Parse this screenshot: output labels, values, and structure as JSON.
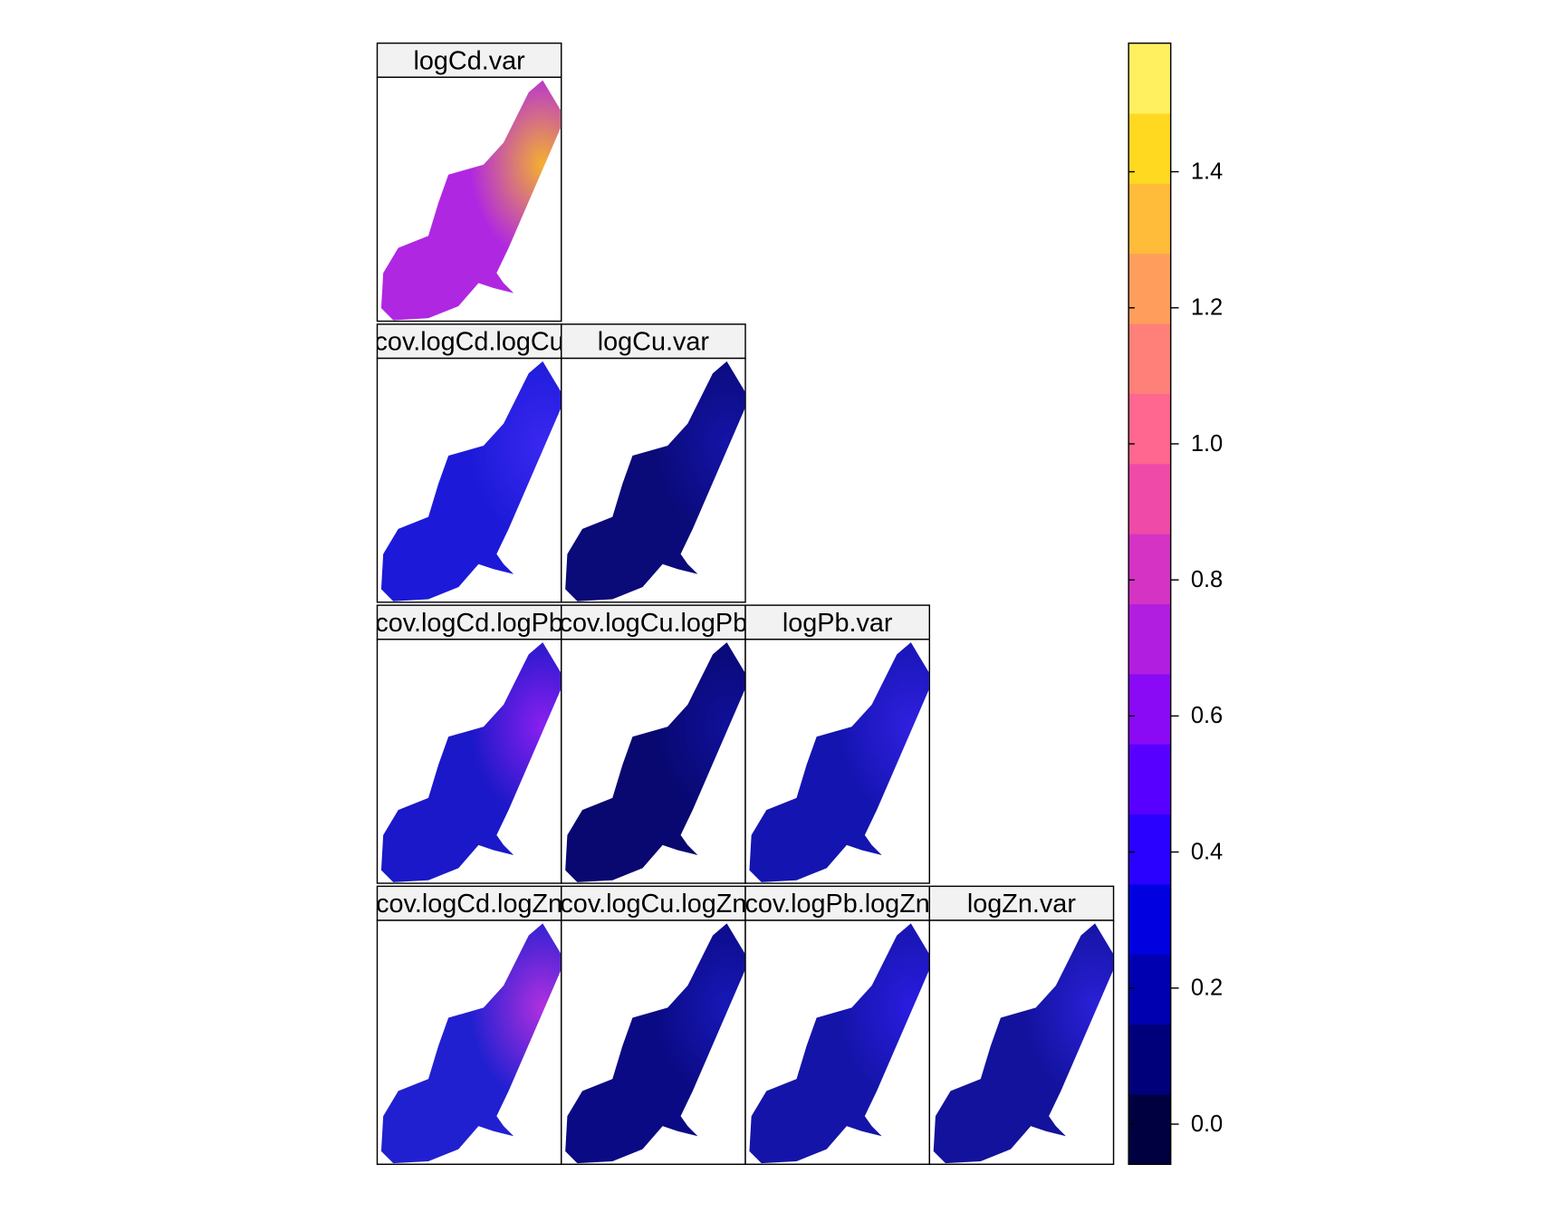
{
  "chart_data": {
    "type": "panel-map",
    "panels": [
      {
        "title": "logCd.var",
        "color": "#b027e2",
        "highlight": "#f4b030"
      },
      {
        "title": "cov.logCd.logCu",
        "color": "#1c1ad8",
        "highlight": "#3a28f0"
      },
      {
        "title": "logCu.var",
        "color": "#0a0a78",
        "highlight": "#1414a8"
      },
      {
        "title": "cov.logCd.logPb",
        "color": "#1a18c8",
        "highlight": "#8a20f0"
      },
      {
        "title": "cov.logCu.logPb",
        "color": "#080870",
        "highlight": "#10109a"
      },
      {
        "title": "logPb.var",
        "color": "#1414b0",
        "highlight": "#3020e0"
      },
      {
        "title": "cov.logCd.logZn",
        "color": "#2020d0",
        "highlight": "#b030e0"
      },
      {
        "title": "cov.logCu.logZn",
        "color": "#0a0a84",
        "highlight": "#1818b8"
      },
      {
        "title": "cov.logPb.logZn",
        "color": "#1414a8",
        "highlight": "#2a1ce0"
      },
      {
        "title": "logZn.var",
        "color": "#12129c",
        "highlight": "#2a20d8"
      }
    ],
    "colorbar": {
      "lim": [
        -0.059,
        1.589
      ],
      "ticks": [
        {
          "value": 0,
          "label": "0.0"
        },
        0.2,
        0.4,
        0.6,
        0.8,
        {
          "value": 1,
          "label": "1.0"
        },
        1.2,
        1.4
      ],
      "colors": [
        "#000040",
        "#00007a",
        "#0000b0",
        "#0000e0",
        "#2a00ff",
        "#5800ff",
        "#8a0af5",
        "#b21ee0",
        "#d433c4",
        "#f04aa8",
        "#ff6690",
        "#ff8078",
        "#ff9e5c",
        "#ffbb3a",
        "#ffd820",
        "#fff060"
      ]
    }
  }
}
